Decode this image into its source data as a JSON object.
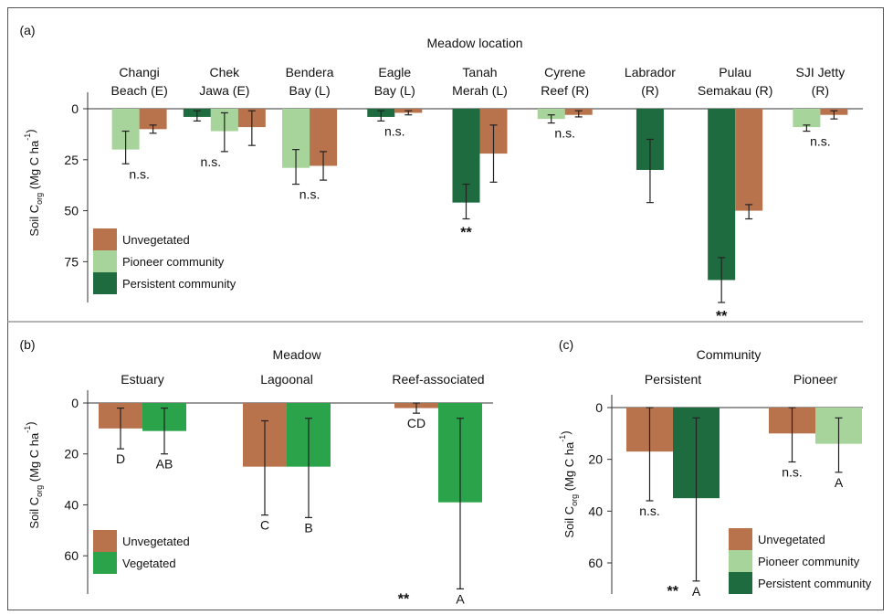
{
  "colors": {
    "unvegetated": "#b8734c",
    "pioneer": "#a7d49b",
    "persistent": "#1d6b3f",
    "vegetated": "#2aa34a",
    "axis": "#333333",
    "errorbar": "#222222"
  },
  "chart_data": [
    {
      "panel": "(a)",
      "type": "bar",
      "title": "Meadow location",
      "ylabel": "Soil C_org (Mg C ha⁻¹)",
      "ylabel_main": "Soil C",
      "ylabel_sub": "org",
      "ylabel_units": " (Mg C ha",
      "ylabel_sup": "-1",
      "ylabel_close": ")",
      "y_ticks": [
        "0",
        "25",
        "50",
        "75"
      ],
      "y_tick_values": [
        0,
        25,
        50,
        75
      ],
      "ylim": [
        0,
        95
      ],
      "y_inverted": true,
      "categories": [
        {
          "line1": "Changi",
          "line2": "Beach (E)",
          "bars": [
            {
              "series": "pioneer",
              "value": 20,
              "err": [
                11,
                27
              ]
            },
            {
              "series": "unvegetated",
              "value": 10,
              "err": [
                8,
                12
              ]
            }
          ],
          "annotation": "n.s."
        },
        {
          "line1": "Chek",
          "line2": "Jawa (E)",
          "bars": [
            {
              "series": "persistent",
              "value": 4,
              "err": [
                1,
                6
              ]
            },
            {
              "series": "pioneer",
              "value": 11,
              "err": [
                2,
                21
              ]
            },
            {
              "series": "unvegetated",
              "value": 9,
              "err": [
                1,
                18
              ]
            }
          ],
          "annotation": "n.s."
        },
        {
          "line1": "Bendera",
          "line2": "Bay (L)",
          "bars": [
            {
              "series": "pioneer",
              "value": 29,
              "err": [
                20,
                37
              ]
            },
            {
              "series": "unvegetated",
              "value": 28,
              "err": [
                21,
                35
              ]
            }
          ],
          "annotation": "n.s."
        },
        {
          "line1": "Eagle",
          "line2": "Bay (L)",
          "bars": [
            {
              "series": "persistent",
              "value": 4,
              "err": [
                1,
                6
              ]
            },
            {
              "series": "unvegetated",
              "value": 2,
              "err": [
                1,
                3
              ]
            }
          ],
          "annotation": "n.s."
        },
        {
          "line1": "Tanah",
          "line2": "Merah (L)",
          "bars": [
            {
              "series": "persistent",
              "value": 46,
              "err": [
                37,
                54
              ]
            },
            {
              "series": "unvegetated",
              "value": 22,
              "err": [
                8,
                36
              ]
            }
          ],
          "annotation": "**"
        },
        {
          "line1": "Cyrene",
          "line2": "Reef (R)",
          "bars": [
            {
              "series": "pioneer",
              "value": 5,
              "err": [
                3,
                7
              ]
            },
            {
              "series": "unvegetated",
              "value": 3,
              "err": [
                1,
                4
              ]
            }
          ],
          "annotation": "n.s."
        },
        {
          "line1": "Labrador",
          "line2": "(R)",
          "bars": [
            {
              "series": "persistent",
              "value": 30,
              "err": [
                15,
                46
              ]
            }
          ],
          "annotation": ""
        },
        {
          "line1": "Pulau",
          "line2": "Semakau (R)",
          "bars": [
            {
              "series": "persistent",
              "value": 84,
              "err": [
                73,
                95
              ]
            },
            {
              "series": "unvegetated",
              "value": 50,
              "err": [
                47,
                54
              ]
            }
          ],
          "annotation": "**"
        },
        {
          "line1": "SJI Jetty",
          "line2": "(R)",
          "bars": [
            {
              "series": "pioneer",
              "value": 9,
              "err": [
                8,
                11
              ]
            },
            {
              "series": "unvegetated",
              "value": 3,
              "err": [
                1,
                5
              ]
            }
          ],
          "annotation": "n.s."
        }
      ],
      "legend": [
        {
          "series": "unvegetated",
          "label": "Unvegetated"
        },
        {
          "series": "pioneer",
          "label": "Pioneer community"
        },
        {
          "series": "persistent",
          "label": "Persistent community"
        }
      ]
    },
    {
      "panel": "(b)",
      "type": "bar",
      "title": "Meadow",
      "ylabel_main": "Soil C",
      "ylabel_sub": "org",
      "ylabel_units": " (Mg C ha",
      "ylabel_sup": "-1",
      "ylabel_close": ")",
      "y_ticks": [
        "0",
        "20",
        "40",
        "60"
      ],
      "y_tick_values": [
        0,
        20,
        40,
        60
      ],
      "ylim": [
        0,
        75
      ],
      "y_inverted": true,
      "categories": [
        {
          "line1": "Estuary",
          "bars": [
            {
              "series": "unvegetated",
              "value": 10,
              "err": [
                2,
                18
              ],
              "letter": "D"
            },
            {
              "series": "vegetated",
              "value": 11,
              "err": [
                2,
                20
              ],
              "letter": "AB"
            }
          ],
          "annotation": ""
        },
        {
          "line1": "Lagoonal",
          "bars": [
            {
              "series": "unvegetated",
              "value": 25,
              "err": [
                7,
                44
              ],
              "letter": "C"
            },
            {
              "series": "vegetated",
              "value": 25,
              "err": [
                6,
                45
              ],
              "letter": "B"
            }
          ],
          "annotation": ""
        },
        {
          "line1": "Reef-associated",
          "bars": [
            {
              "series": "unvegetated",
              "value": 2,
              "err": [
                0,
                4
              ],
              "letter": "CD"
            },
            {
              "series": "vegetated",
              "value": 39,
              "err": [
                6,
                73
              ],
              "letter": "A"
            }
          ],
          "annotation": "**"
        }
      ],
      "legend": [
        {
          "series": "unvegetated",
          "label": "Unvegetated"
        },
        {
          "series": "vegetated",
          "label": "Vegetated"
        }
      ]
    },
    {
      "panel": "(c)",
      "type": "bar",
      "title": "Community",
      "ylabel_main": "Soil C",
      "ylabel_sub": "org",
      "ylabel_units": " (Mg C ha",
      "ylabel_sup": "-1",
      "ylabel_close": ")",
      "y_ticks": [
        "0",
        "20",
        "40",
        "60"
      ],
      "y_tick_values": [
        0,
        20,
        40,
        60
      ],
      "ylim": [
        0,
        72
      ],
      "y_inverted": true,
      "categories": [
        {
          "line1": "Persistent",
          "bars": [
            {
              "series": "unvegetated",
              "value": 17,
              "err": [
                0,
                36
              ],
              "letter": "n.s."
            },
            {
              "series": "persistent",
              "value": 35,
              "err": [
                4,
                67
              ],
              "letter": "A"
            }
          ],
          "annotation": "**"
        },
        {
          "line1": "Pioneer",
          "bars": [
            {
              "series": "unvegetated",
              "value": 10,
              "err": [
                0,
                21
              ],
              "letter": "n.s."
            },
            {
              "series": "pioneer",
              "value": 14,
              "err": [
                4,
                25
              ],
              "letter": "A"
            }
          ],
          "annotation": ""
        }
      ],
      "legend": [
        {
          "series": "unvegetated",
          "label": "Unvegetated"
        },
        {
          "series": "pioneer",
          "label": "Pioneer community"
        },
        {
          "series": "persistent",
          "label": "Persistent community"
        }
      ]
    }
  ]
}
